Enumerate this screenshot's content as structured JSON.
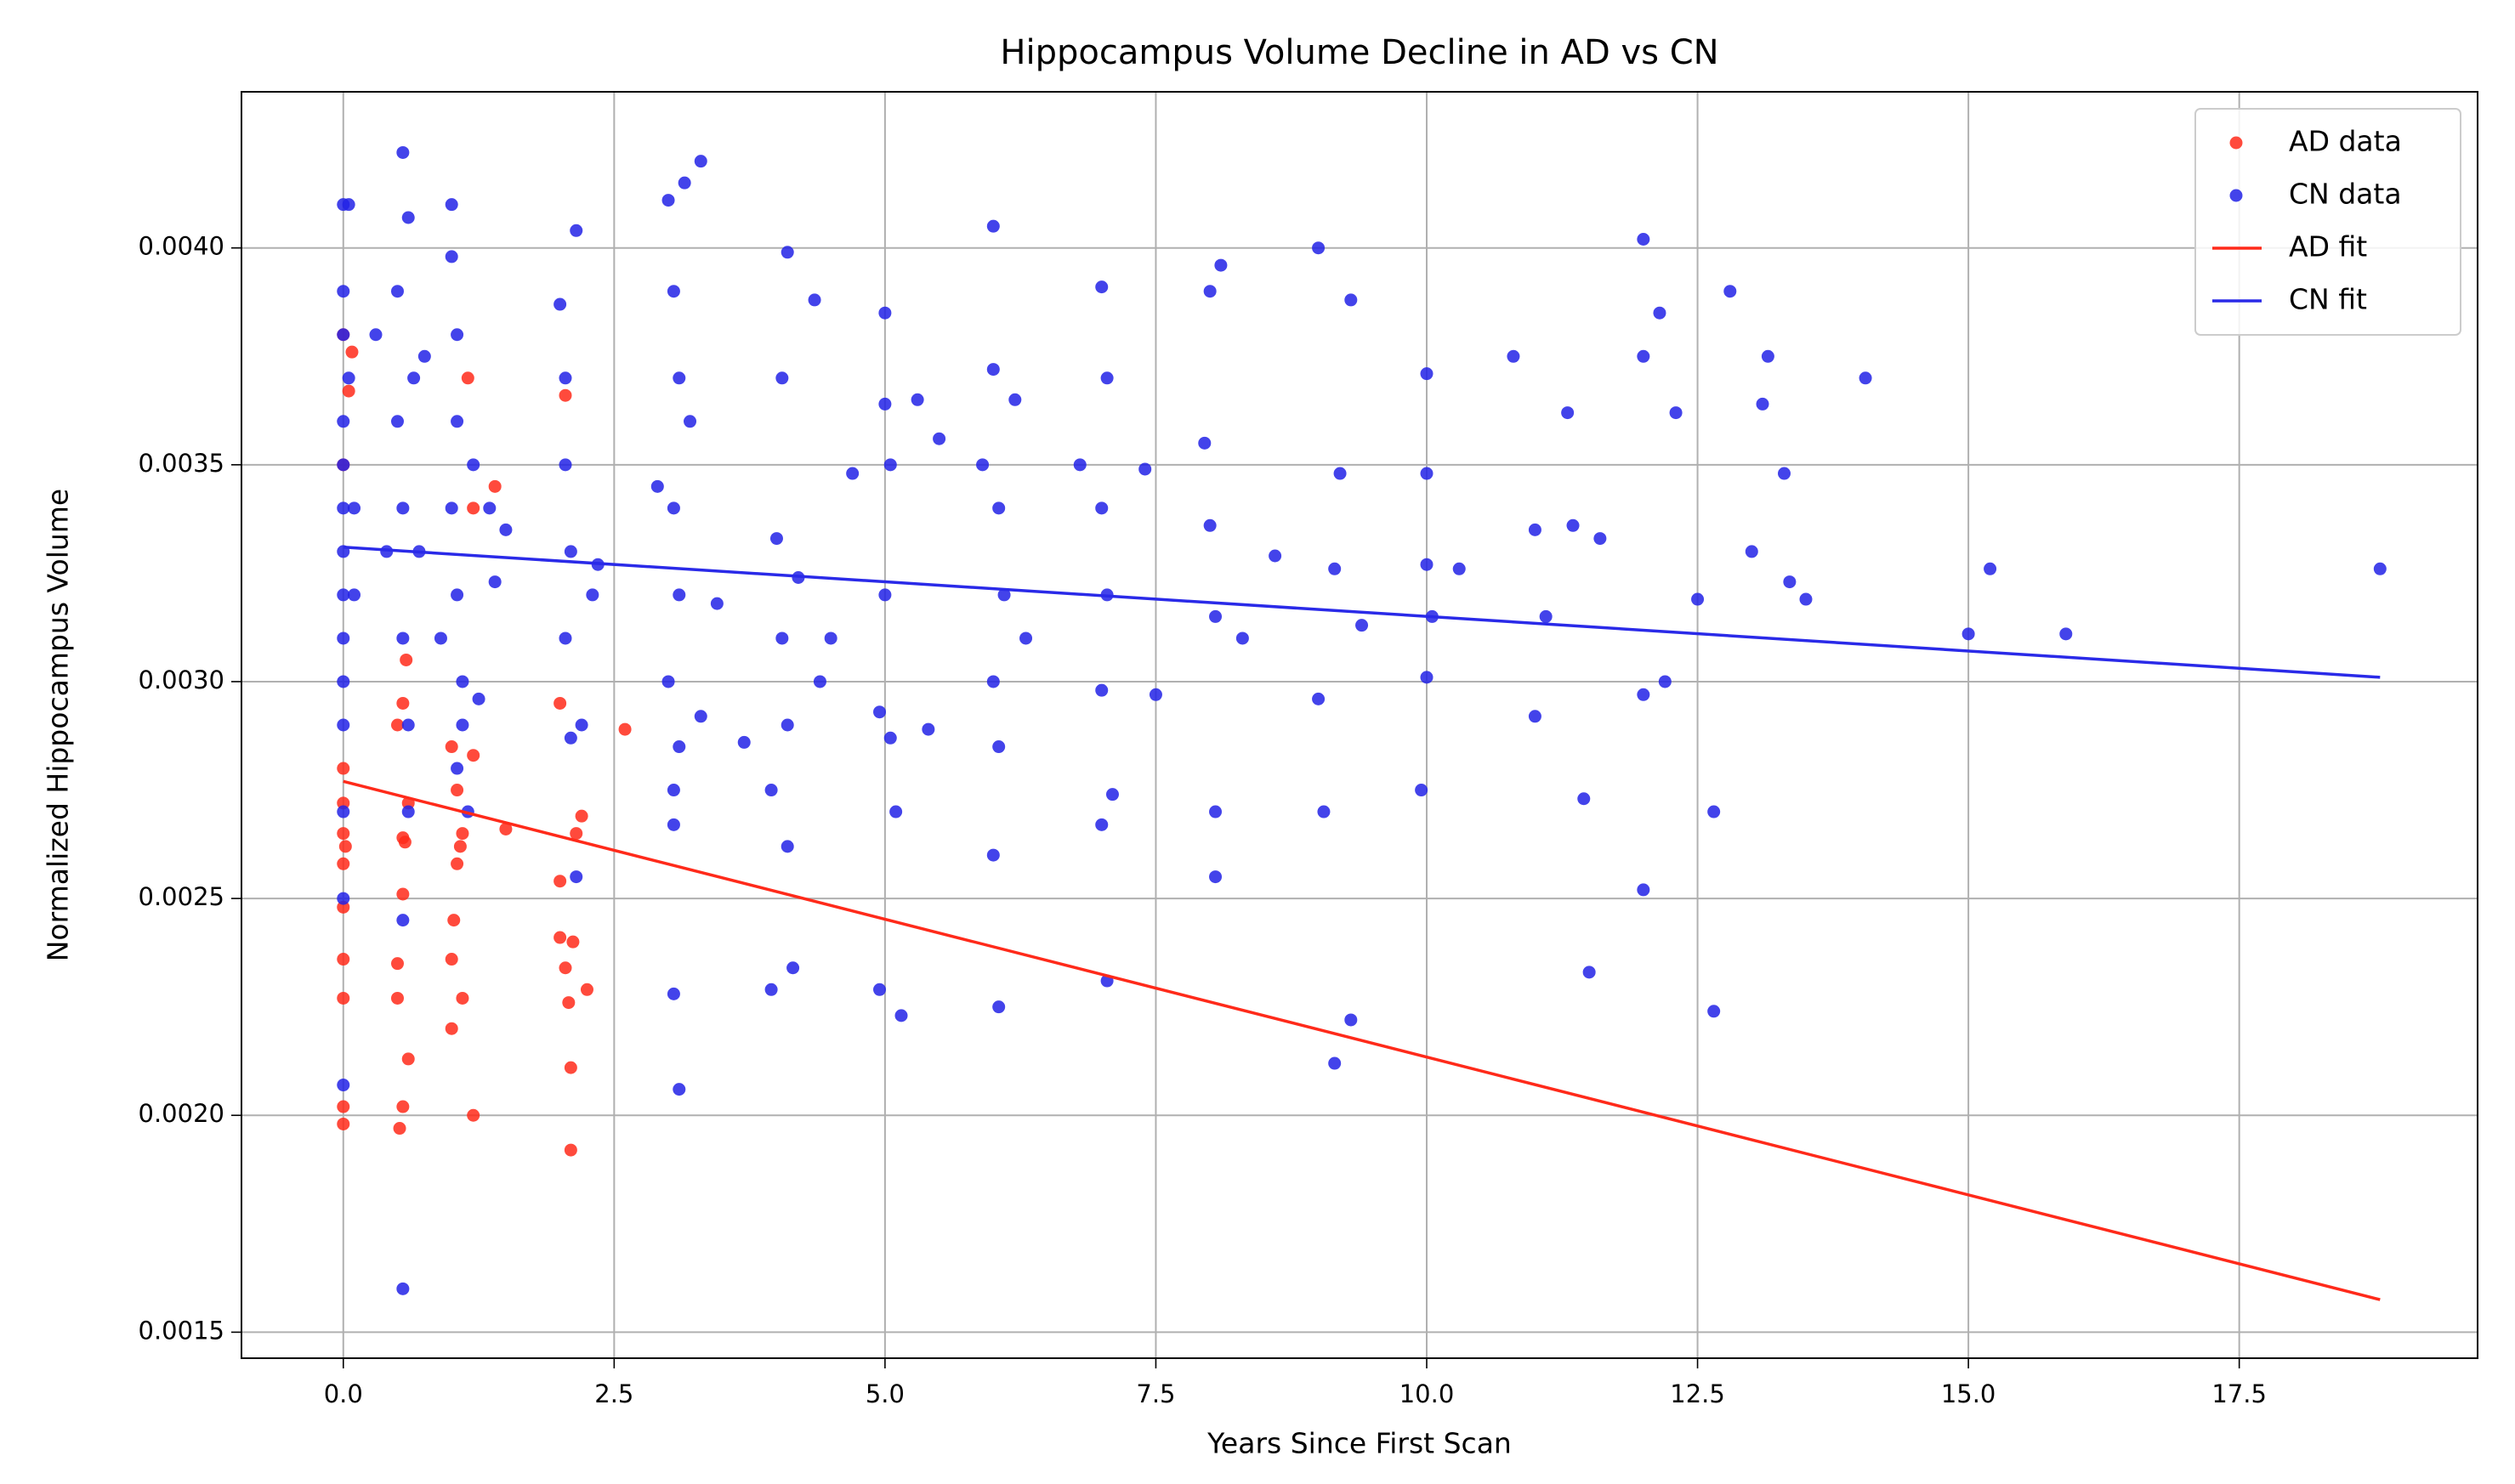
{
  "chart_data": {
    "type": "scatter",
    "title": "Hippocampus Volume Decline in AD vs CN",
    "xlabel": "Years Since First Scan",
    "ylabel": "Normalized Hippocampus Volume",
    "xlim": [
      -0.94,
      19.7
    ],
    "ylim": [
      0.00144,
      0.00436
    ],
    "xticks": [
      {
        "value": 0,
        "label": "0.0"
      },
      2.5,
      {
        "value": 5,
        "label": "5.0"
      },
      7.5,
      {
        "value": 10,
        "label": "10.0"
      },
      12.5,
      {
        "value": 15,
        "label": "15.0"
      },
      17.5
    ],
    "yticks": [
      0.0015,
      {
        "value": 0.002,
        "label": "0.0020"
      },
      0.0025,
      {
        "value": 0.003,
        "label": "0.0030"
      },
      0.0035,
      {
        "value": 0.004,
        "label": "0.0040"
      }
    ],
    "grid": true,
    "legend": "upper right",
    "series": [
      {
        "name": "AD data",
        "mode": "markers",
        "color": "#ff2a1a",
        "opacity": 0.85,
        "x": [
          0,
          0,
          0,
          0,
          0,
          0,
          0,
          0,
          0,
          0,
          0,
          0.02,
          0.05,
          0.08,
          0.5,
          0.5,
          0.52,
          0.55,
          0.55,
          0.57,
          0.6,
          0.5,
          0.55,
          0.6,
          0.58,
          1.0,
          1.0,
          1.02,
          1.05,
          1.08,
          1.1,
          1.0,
          1.05,
          1.1,
          1.15,
          1.2,
          1.2,
          1.5,
          1.4,
          2.0,
          2.0,
          2.05,
          2.08,
          2.1,
          2.1,
          2.12,
          2.05,
          2.0,
          2.15,
          2.2,
          2.25,
          2.6,
          1.2,
          0.55
        ],
        "values": [
          0.00198,
          0.00202,
          0.00227,
          0.00236,
          0.00248,
          0.00258,
          0.00265,
          0.00272,
          0.0028,
          0.0035,
          0.0038,
          0.00262,
          0.00367,
          0.00376,
          0.00227,
          0.00235,
          0.00197,
          0.00202,
          0.00251,
          0.00263,
          0.00272,
          0.0029,
          0.00295,
          0.00213,
          0.00305,
          0.0022,
          0.00236,
          0.00245,
          0.00258,
          0.00262,
          0.00227,
          0.00285,
          0.00275,
          0.00265,
          0.0037,
          0.002,
          0.00283,
          0.00266,
          0.00345,
          0.00241,
          0.00254,
          0.00234,
          0.00226,
          0.00211,
          0.00192,
          0.0024,
          0.00366,
          0.00295,
          0.00265,
          0.00269,
          0.00229,
          0.00289,
          0.0034,
          0.00264
        ]
      },
      {
        "name": "CN data",
        "mode": "markers",
        "color": "#2222e6",
        "opacity": 0.85,
        "x": [
          0,
          0,
          0,
          0,
          0,
          0,
          0,
          0,
          0,
          0,
          0,
          0,
          0,
          0,
          0.05,
          0.05,
          0.1,
          0.1,
          0.3,
          0.4,
          0.5,
          0.5,
          0.55,
          0.55,
          0.55,
          0.6,
          0.6,
          0.55,
          0.55,
          0.6,
          0.65,
          0.7,
          0.75,
          0.9,
          1.0,
          1.0,
          1.05,
          1.05,
          1.0,
          1.05,
          1.1,
          1.05,
          1.1,
          1.15,
          1.2,
          1.25,
          1.35,
          1.4,
          1.5,
          2.0,
          2.05,
          2.05,
          2.1,
          2.05,
          2.1,
          2.15,
          2.15,
          2.2,
          2.3,
          2.35,
          2.9,
          3.0,
          3.05,
          3.1,
          3.05,
          3.1,
          3.0,
          3.1,
          3.05,
          3.05,
          3.05,
          3.1,
          3.15,
          3.3,
          3.2,
          3.3,
          3.45,
          3.7,
          3.95,
          3.95,
          4.0,
          4.05,
          4.1,
          4.05,
          4.1,
          4.1,
          4.15,
          4.2,
          4.35,
          4.4,
          4.5,
          4.7,
          5.0,
          5.0,
          5.05,
          5.0,
          4.95,
          5.05,
          5.1,
          5.15,
          4.95,
          5.3,
          5.4,
          5.5,
          5.9,
          6.0,
          6.0,
          6.05,
          6.1,
          6.0,
          6.05,
          6.0,
          6.05,
          6.2,
          6.3,
          6.8,
          7.0,
          7.05,
          7.0,
          7.05,
          7.0,
          7.1,
          7.0,
          7.05,
          7.4,
          7.5,
          8.0,
          7.95,
          8.0,
          8.05,
          8.05,
          8.05,
          8.1,
          8.3,
          8.6,
          9.0,
          9.0,
          9.05,
          9.15,
          9.2,
          9.15,
          9.3,
          9.3,
          9.4,
          10.0,
          10.0,
          10.0,
          10.05,
          10.0,
          9.95,
          10.3,
          10.8,
          11.0,
          11.0,
          11.1,
          11.3,
          11.35,
          11.45,
          11.5,
          11.6,
          12.0,
          12.0,
          12.0,
          12.0,
          12.15,
          12.2,
          12.3,
          12.5,
          12.65,
          12.65,
          12.8,
          13.0,
          13.1,
          13.15,
          13.3,
          13.35,
          13.5,
          14.05,
          15.0,
          15.2,
          15.9,
          18.8
        ],
        "values": [
          0.0041,
          0.0039,
          0.0038,
          0.0036,
          0.0035,
          0.0034,
          0.0033,
          0.0032,
          0.0031,
          0.003,
          0.0029,
          0.0027,
          0.0025,
          0.00207,
          0.0041,
          0.0037,
          0.0034,
          0.0032,
          0.0038,
          0.0033,
          0.0039,
          0.0036,
          0.00422,
          0.0034,
          0.0031,
          0.0029,
          0.0027,
          0.00245,
          0.0016,
          0.00407,
          0.0037,
          0.0033,
          0.00375,
          0.0031,
          0.0041,
          0.00398,
          0.0038,
          0.0036,
          0.0034,
          0.0032,
          0.003,
          0.0028,
          0.0029,
          0.0027,
          0.0035,
          0.00296,
          0.0034,
          0.00323,
          0.00335,
          0.00387,
          0.0037,
          0.0035,
          0.0033,
          0.0031,
          0.00287,
          0.00404,
          0.00255,
          0.0029,
          0.0032,
          0.00327,
          0.00345,
          0.00411,
          0.0039,
          0.0037,
          0.0034,
          0.0032,
          0.003,
          0.00285,
          0.00275,
          0.00267,
          0.00228,
          0.00206,
          0.00415,
          0.0042,
          0.0036,
          0.00292,
          0.00318,
          0.00286,
          0.00275,
          0.00229,
          0.00333,
          0.0031,
          0.00399,
          0.0037,
          0.0029,
          0.00262,
          0.00234,
          0.00324,
          0.00388,
          0.003,
          0.0031,
          0.00348,
          0.00385,
          0.00364,
          0.0035,
          0.0032,
          0.00293,
          0.00287,
          0.0027,
          0.00223,
          0.00229,
          0.00365,
          0.00289,
          0.00356,
          0.0035,
          0.00405,
          0.00372,
          0.0034,
          0.0032,
          0.003,
          0.00285,
          0.0026,
          0.00225,
          0.00365,
          0.0031,
          0.0035,
          0.00391,
          0.0037,
          0.0034,
          0.0032,
          0.00298,
          0.00274,
          0.00267,
          0.00231,
          0.00349,
          0.00297,
          0.0039,
          0.00355,
          0.00336,
          0.00315,
          0.0027,
          0.00255,
          0.00396,
          0.0031,
          0.00329,
          0.004,
          0.00296,
          0.0027,
          0.00326,
          0.00348,
          0.00212,
          0.00222,
          0.00388,
          0.00313,
          0.00371,
          0.00348,
          0.00327,
          0.00315,
          0.00301,
          0.00275,
          0.00326,
          0.00375,
          0.00335,
          0.00292,
          0.00315,
          0.00362,
          0.00336,
          0.00273,
          0.00233,
          0.00333,
          0.00402,
          0.00375,
          0.00297,
          0.00252,
          0.00385,
          0.003,
          0.00362,
          0.00319,
          0.0027,
          0.00224,
          0.0039,
          0.0033,
          0.00364,
          0.00375,
          0.00348,
          0.00323,
          0.00319,
          0.0037,
          0.00311,
          0.00326,
          0.00311,
          0.00326
        ]
      },
      {
        "name": "AD fit",
        "mode": "line",
        "color": "#ff2a1a",
        "x": [
          0,
          18.8
        ],
        "values": [
          0.00277,
          0.001575
        ]
      },
      {
        "name": "CN fit",
        "mode": "line",
        "color": "#2a2ae8",
        "x": [
          0,
          18.8
        ],
        "values": [
          0.00331,
          0.00301
        ]
      }
    ]
  }
}
